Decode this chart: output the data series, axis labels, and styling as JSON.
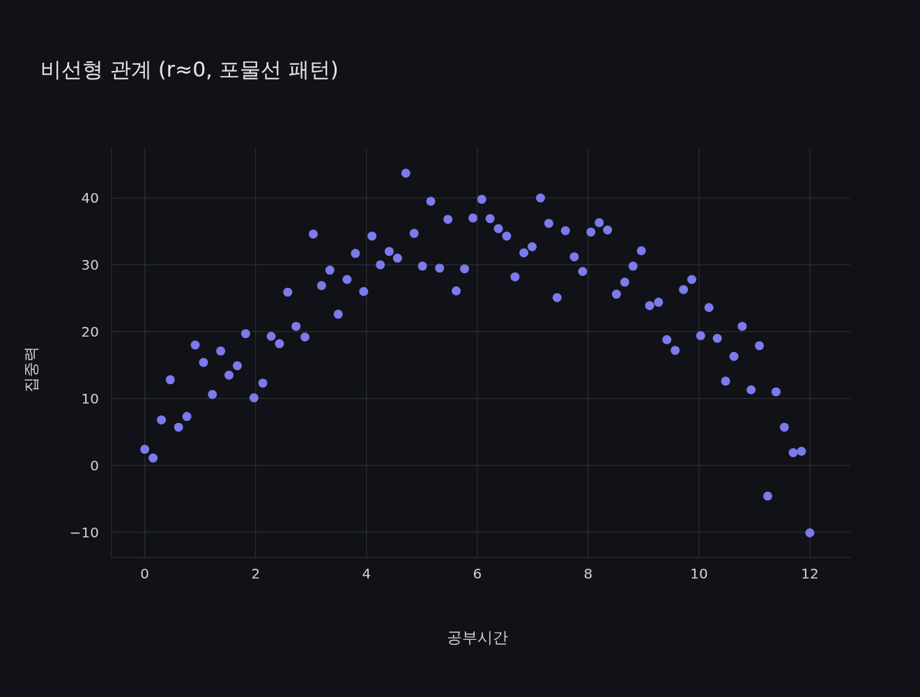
{
  "chart_data": {
    "type": "scatter",
    "title": "비선형 관계 (r≈0, 포물선 패턴)",
    "xlabel": "공부시간",
    "ylabel": "집중력",
    "x": [
      0,
      0.15,
      0.3,
      0.46,
      0.61,
      0.76,
      0.91,
      1.06,
      1.22,
      1.37,
      1.52,
      1.67,
      1.82,
      1.97,
      2.13,
      2.28,
      2.43,
      2.58,
      2.73,
      2.89,
      3.04,
      3.19,
      3.34,
      3.49,
      3.65,
      3.8,
      3.95,
      4.1,
      4.25,
      4.41,
      4.56,
      4.71,
      4.86,
      5.01,
      5.16,
      5.32,
      5.47,
      5.62,
      5.77,
      5.92,
      6.08,
      6.23,
      6.38,
      6.53,
      6.68,
      6.84,
      6.99,
      7.14,
      7.29,
      7.44,
      7.59,
      7.75,
      7.9,
      8.05,
      8.2,
      8.35,
      8.51,
      8.66,
      8.81,
      8.96,
      9.11,
      9.27,
      9.42,
      9.57,
      9.72,
      9.87,
      10.03,
      10.18,
      10.33,
      10.48,
      10.63,
      10.78,
      10.94,
      11.09,
      11.24,
      11.39,
      11.54,
      11.7,
      11.85,
      12
    ],
    "series": [
      {
        "color": "#7b7bec",
        "values": [
          2.4,
          1.1,
          6.8,
          12.8,
          5.7,
          7.3,
          18.0,
          15.4,
          10.6,
          17.1,
          13.5,
          14.9,
          19.7,
          10.1,
          12.3,
          19.3,
          18.2,
          25.9,
          20.8,
          19.2,
          34.6,
          26.9,
          29.2,
          22.6,
          27.8,
          31.7,
          26.0,
          34.3,
          30.0,
          32.0,
          31.0,
          43.7,
          34.7,
          29.8,
          39.5,
          29.5,
          36.8,
          26.1,
          29.4,
          37.0,
          39.8,
          36.9,
          35.4,
          34.3,
          28.2,
          31.8,
          32.7,
          40.0,
          36.2,
          25.1,
          35.1,
          31.2,
          29.0,
          34.9,
          36.3,
          35.2,
          25.6,
          27.4,
          29.8,
          32.1,
          23.9,
          24.4,
          18.8,
          17.2,
          26.3,
          27.8,
          19.4,
          23.6,
          19.0,
          12.6,
          16.3,
          20.8,
          11.3,
          17.9,
          -4.6,
          11.0,
          5.7,
          1.9,
          2.1,
          -10.1
        ]
      }
    ],
    "xlim": [
      -0.6,
      12.73
    ],
    "ylim": [
      -13.8,
      47.4
    ],
    "xticks": [
      0,
      2,
      4,
      6,
      8,
      10,
      12
    ],
    "yticks": [
      {
        "value": -10,
        "label": "−10"
      },
      0,
      10,
      20,
      30,
      40
    ],
    "grid": true,
    "marker": "circle",
    "legend": false
  }
}
